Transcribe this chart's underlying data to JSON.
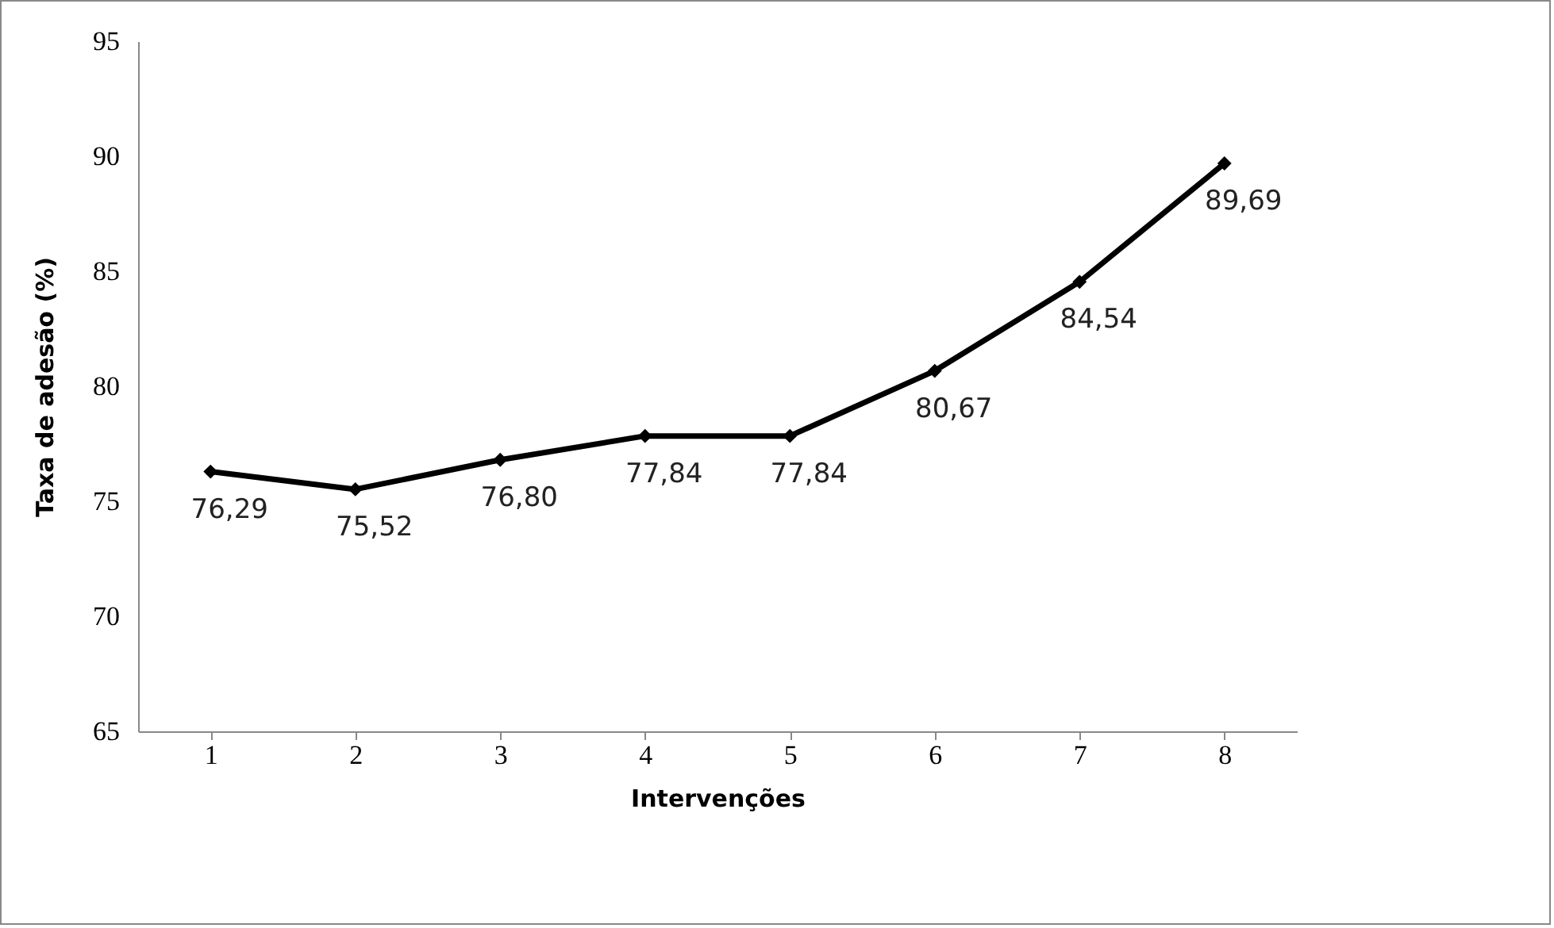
{
  "chart_data": {
    "type": "line",
    "xlabel": "Intervenções",
    "ylabel": "Taxa de adesão (%)",
    "categories": [
      "1",
      "2",
      "3",
      "4",
      "5",
      "6",
      "7",
      "8"
    ],
    "series": [
      {
        "color": "#000000",
        "values": [
          76.29,
          75.52,
          76.8,
          77.84,
          77.84,
          80.67,
          84.54,
          89.69
        ],
        "value_labels": [
          "76,29",
          "75,52",
          "76,80",
          "77,84",
          "77,84",
          "80,67",
          "84,54",
          "89,69"
        ]
      }
    ],
    "ylim": [
      65,
      95
    ],
    "yticks": [
      65,
      70,
      75,
      80,
      85,
      90,
      95
    ],
    "grid": false,
    "legend": false,
    "marker": "diamond",
    "line_style": "solid"
  }
}
